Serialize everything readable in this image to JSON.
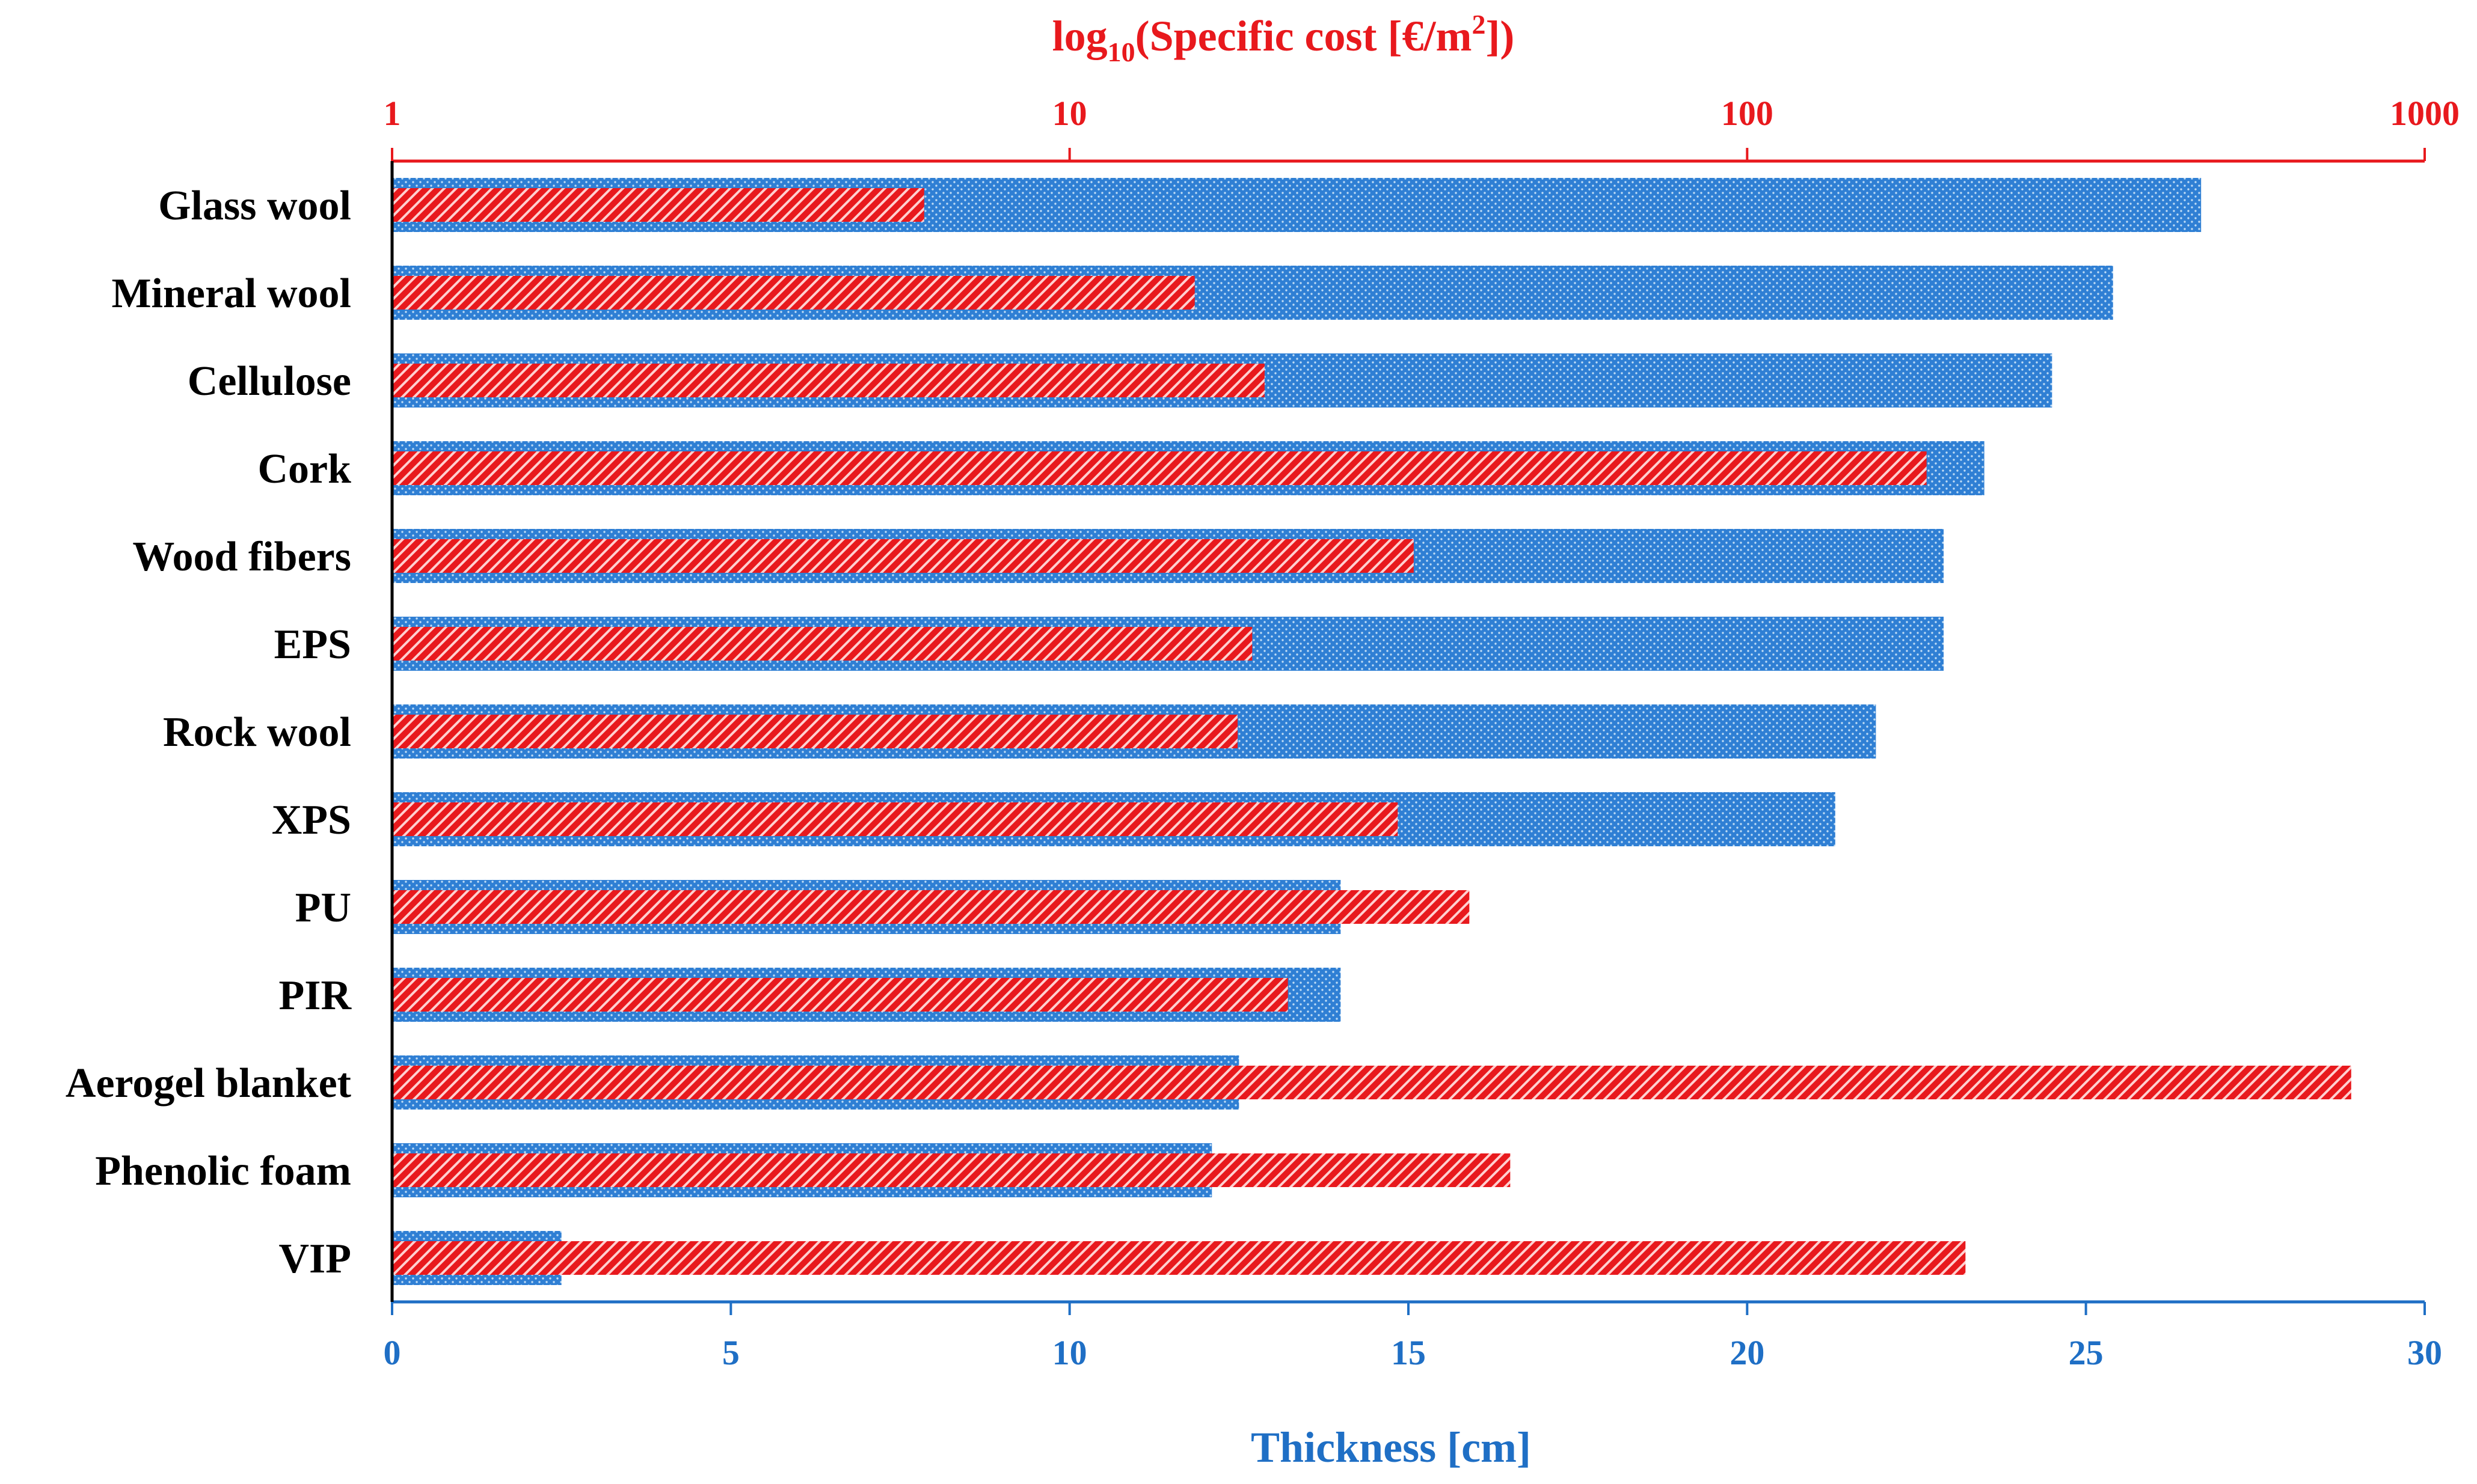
{
  "chart_data": {
    "type": "bar",
    "orientation": "horizontal",
    "categories": [
      "Glass wool",
      "Mineral wool",
      "Cellulose",
      "Cork",
      "Wood fibers",
      "EPS",
      "Rock wool",
      "XPS",
      "PU",
      "PIR",
      "Aerogel blanket",
      "Phenolic foam",
      "VIP"
    ],
    "series": [
      {
        "axis": "bottom",
        "color": "#2f7fd4",
        "values": [
          26.7,
          25.4,
          24.5,
          23.5,
          22.9,
          22.9,
          21.9,
          21.3,
          14.0,
          14.0,
          12.5,
          12.1,
          2.5
        ]
      },
      {
        "axis": "top",
        "color": "#e8191d",
        "values": [
          6.1,
          15.3,
          19.4,
          184,
          32.2,
          18.6,
          17.7,
          30.5,
          38.9,
          21.0,
          779,
          44.7,
          210
        ]
      }
    ],
    "x_bottom": {
      "title": "Thickness [cm]",
      "range": [
        0,
        30
      ],
      "ticks": [
        "0",
        "5",
        "10",
        "15",
        "20",
        "25",
        "30"
      ]
    },
    "x_top": {
      "title_main": "log",
      "title_sub": "10",
      "title_rest": "(Specific cost [€/m",
      "title_sup": "2",
      "title_end": "])",
      "scale": "log",
      "range": [
        1,
        1000
      ],
      "ticks": [
        "1",
        "10",
        "100",
        "1000"
      ]
    },
    "grid": false,
    "legend": "none",
    "colors": {
      "bottom_axis": "#1f6fc5",
      "top_axis": "#e8191d",
      "left_axis": "#000000"
    }
  }
}
